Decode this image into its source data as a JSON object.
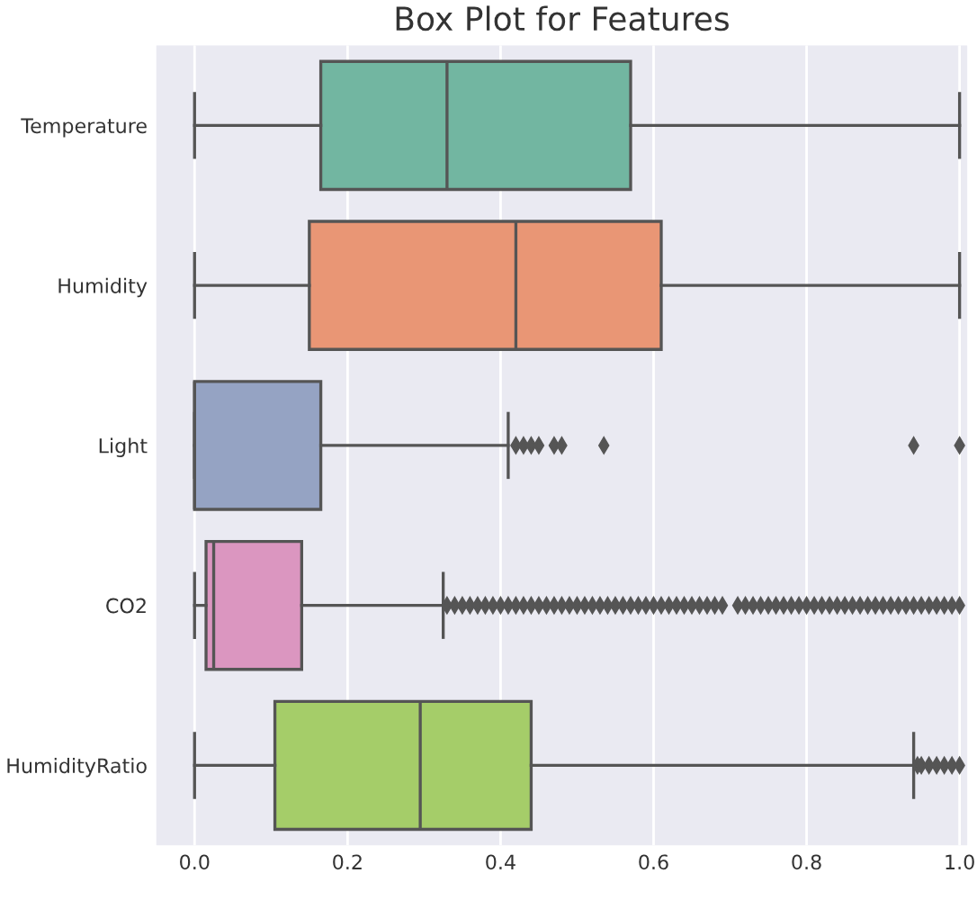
{
  "chart_data": {
    "type": "box",
    "title": "Box Plot for Features",
    "orientation": "horizontal",
    "categories": [
      "Temperature",
      "Humidity",
      "Light",
      "CO2",
      "HumidityRatio"
    ],
    "colors": [
      "#72b6a1",
      "#e99675",
      "#95a3c3",
      "#db96c0",
      "#a5cd69"
    ],
    "boxes": [
      {
        "low": 0.0,
        "q1": 0.165,
        "median": 0.33,
        "q3": 0.57,
        "high": 1.0
      },
      {
        "low": 0.0,
        "q1": 0.15,
        "median": 0.42,
        "q3": 0.61,
        "high": 1.0
      },
      {
        "low": 0.0,
        "q1": 0.0,
        "median": 0.0,
        "q3": 0.165,
        "high": 0.41,
        "outliers": [
          0.42,
          0.43,
          0.44,
          0.45,
          0.47,
          0.48,
          0.535,
          0.94,
          1.0
        ]
      },
      {
        "low": 0.0,
        "q1": 0.015,
        "median": 0.025,
        "q3": 0.14,
        "high": 0.325,
        "outliers": [
          0.33,
          0.34,
          0.35,
          0.36,
          0.37,
          0.38,
          0.39,
          0.4,
          0.41,
          0.42,
          0.43,
          0.44,
          0.45,
          0.46,
          0.47,
          0.48,
          0.49,
          0.5,
          0.51,
          0.52,
          0.53,
          0.54,
          0.55,
          0.56,
          0.57,
          0.58,
          0.59,
          0.6,
          0.61,
          0.62,
          0.63,
          0.64,
          0.65,
          0.66,
          0.67,
          0.68,
          0.69,
          0.71,
          0.72,
          0.73,
          0.74,
          0.75,
          0.76,
          0.77,
          0.78,
          0.79,
          0.8,
          0.81,
          0.82,
          0.83,
          0.84,
          0.85,
          0.86,
          0.87,
          0.88,
          0.89,
          0.9,
          0.91,
          0.92,
          0.93,
          0.94,
          0.95,
          0.96,
          0.97,
          0.98,
          0.99,
          1.0
        ]
      },
      {
        "low": 0.0,
        "q1": 0.105,
        "median": 0.295,
        "q3": 0.44,
        "high": 0.94,
        "outliers": [
          0.945,
          0.95,
          0.96,
          0.97,
          0.98,
          0.99,
          1.0
        ]
      }
    ],
    "xlim": [
      -0.05,
      1.01
    ],
    "xticks": [
      {
        "value": 0.0,
        "label": "0.0"
      },
      {
        "value": 0.2,
        "label": "0.2"
      },
      {
        "value": 0.4,
        "label": "0.4"
      },
      {
        "value": 0.6,
        "label": "0.6"
      },
      {
        "value": 0.8,
        "label": "0.8"
      },
      {
        "value": 1.0,
        "label": "1.0"
      }
    ],
    "grid": "x"
  }
}
